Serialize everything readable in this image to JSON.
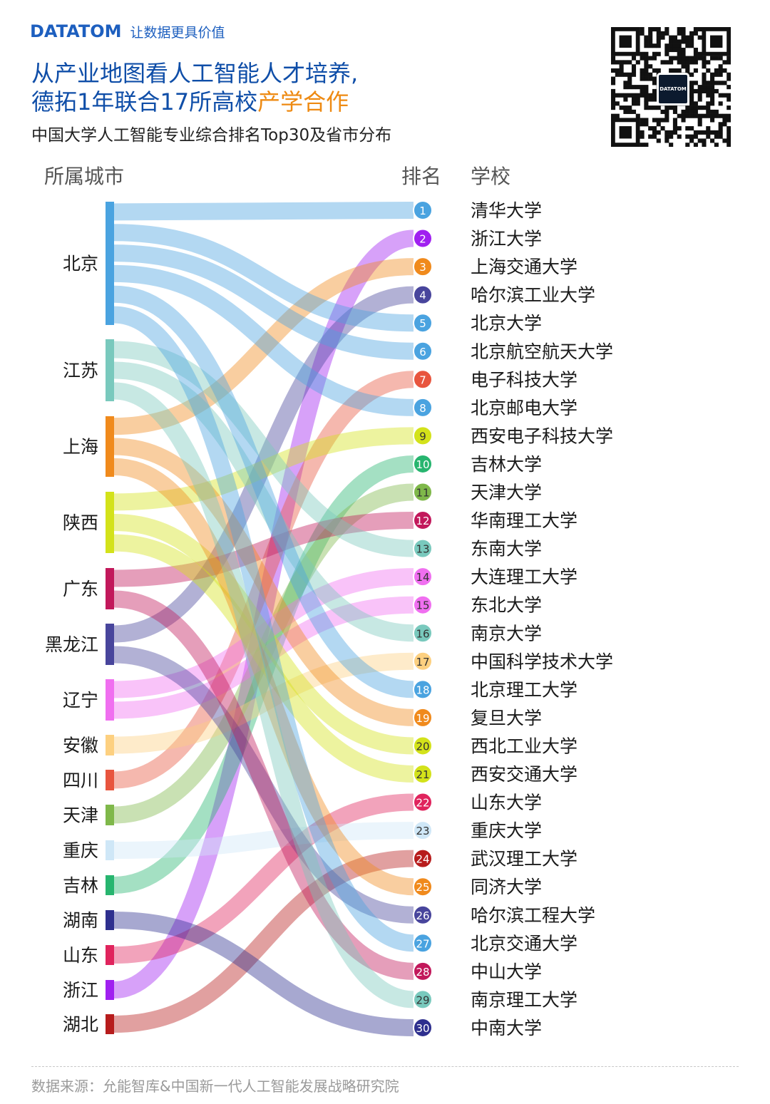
{
  "header": {
    "logo_text": "DATATOM",
    "tagline": "让数据更具价值",
    "title_line1": "从产业地图看人工智能人才培养,",
    "title_line2_main": "德拓1年联合17所高校",
    "title_line2_accent": "产学合作",
    "subtitle": "中国大学人工智能专业综合排名Top30及省市分布",
    "qr_center_text": "DATATOM"
  },
  "columns": {
    "city": "所属城市",
    "rank": "排名",
    "school": "学校"
  },
  "cities": [
    {
      "name": "北京",
      "color": "#4aa3e0"
    },
    {
      "name": "江苏",
      "color": "#79c9bd"
    },
    {
      "name": "上海",
      "color": "#f08a1c"
    },
    {
      "name": "陕西",
      "color": "#d3e21a"
    },
    {
      "name": "广东",
      "color": "#c2185b"
    },
    {
      "name": "黑龙江",
      "color": "#48459c"
    },
    {
      "name": "辽宁",
      "color": "#f06ff0"
    },
    {
      "name": "安徽",
      "color": "#fdd080"
    },
    {
      "name": "四川",
      "color": "#e8553e"
    },
    {
      "name": "天津",
      "color": "#7fb84a"
    },
    {
      "name": "重庆",
      "color": "#cfe7f7"
    },
    {
      "name": "吉林",
      "color": "#27b56f"
    },
    {
      "name": "湖南",
      "color": "#2e2f8e"
    },
    {
      "name": "山东",
      "color": "#e0245d"
    },
    {
      "name": "浙江",
      "color": "#a020f0"
    },
    {
      "name": "湖北",
      "color": "#b71c1c"
    }
  ],
  "schools": [
    {
      "rank": "1",
      "name": "清华大学",
      "city": "北京"
    },
    {
      "rank": "2",
      "name": "浙江大学",
      "city": "浙江"
    },
    {
      "rank": "3",
      "name": "上海交通大学",
      "city": "上海"
    },
    {
      "rank": "4",
      "name": "哈尔滨工业大学",
      "city": "黑龙江"
    },
    {
      "rank": "5",
      "name": "北京大学",
      "city": "北京"
    },
    {
      "rank": "6",
      "name": "北京航空航天大学",
      "city": "北京"
    },
    {
      "rank": "7",
      "name": "电子科技大学",
      "city": "四川"
    },
    {
      "rank": "8",
      "name": "北京邮电大学",
      "city": "北京"
    },
    {
      "rank": "9",
      "name": "西安电子科技大学",
      "city": "陕西"
    },
    {
      "rank": "10",
      "name": "吉林大学",
      "city": "吉林"
    },
    {
      "rank": "11",
      "name": "天津大学",
      "city": "天津"
    },
    {
      "rank": "12",
      "name": "华南理工大学",
      "city": "广东"
    },
    {
      "rank": "13",
      "name": "东南大学",
      "city": "江苏"
    },
    {
      "rank": "14",
      "name": "大连理工大学",
      "city": "辽宁"
    },
    {
      "rank": "15",
      "name": "东北大学",
      "city": "辽宁"
    },
    {
      "rank": "16",
      "name": "南京大学",
      "city": "江苏"
    },
    {
      "rank": "17",
      "name": "中国科学技术大学",
      "city": "安徽"
    },
    {
      "rank": "18",
      "name": "北京理工大学",
      "city": "北京"
    },
    {
      "rank": "19",
      "name": "复旦大学",
      "city": "上海"
    },
    {
      "rank": "20",
      "name": "西北工业大学",
      "city": "陕西"
    },
    {
      "rank": "21",
      "name": "西安交通大学",
      "city": "陕西"
    },
    {
      "rank": "22",
      "name": "山东大学",
      "city": "山东"
    },
    {
      "rank": "23",
      "name": "重庆大学",
      "city": "重庆"
    },
    {
      "rank": "24",
      "name": "武汉理工大学",
      "city": "湖北"
    },
    {
      "rank": "25",
      "name": "同济大学",
      "city": "上海"
    },
    {
      "rank": "26",
      "name": "哈尔滨工程大学",
      "city": "黑龙江"
    },
    {
      "rank": "27",
      "name": "北京交通大学",
      "city": "北京"
    },
    {
      "rank": "28",
      "name": "中山大学",
      "city": "广东"
    },
    {
      "rank": "29",
      "name": "南京理工大学",
      "city": "江苏"
    },
    {
      "rank": "30",
      "name": "中南大学",
      "city": "湖南"
    }
  ],
  "footer": {
    "source": "数据来源：允能智库&中国新一代人工智能发展战略研究院"
  }
}
